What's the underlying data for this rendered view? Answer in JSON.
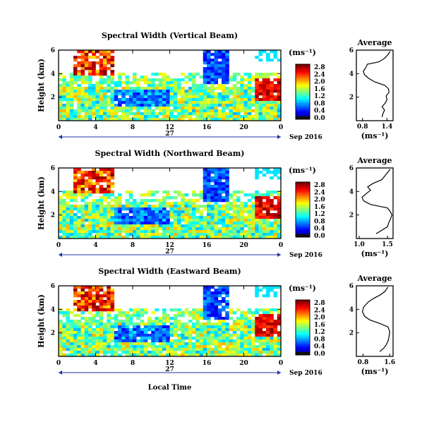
{
  "chart_data": [
    {
      "type": "heatmap",
      "title": "Spectral Width (Vertical Beam)",
      "ylabel": "Height (km)",
      "xlabel": "",
      "x_ticks": [
        "0",
        "4",
        "8",
        "12",
        "16",
        "20",
        "0"
      ],
      "x_ticks_hours": [
        0,
        4,
        8,
        12,
        16,
        20,
        24
      ],
      "y_ticks": [
        "2",
        "4",
        "6"
      ],
      "y_ticks_km": [
        2,
        4,
        6
      ],
      "xlim_hours": [
        0,
        24
      ],
      "ylim_km": [
        0,
        6
      ],
      "day_label": "27",
      "date_label": "Sep 2016",
      "colorbar": {
        "unit": "(ms⁻¹)",
        "ticks": [
          "0.0",
          "0.4",
          "0.8",
          "1.2",
          "1.6",
          "2.0",
          "2.4",
          "2.8"
        ],
        "range": [
          0,
          3
        ]
      },
      "profile": {
        "title": "Average",
        "xlabel": "(ms⁻¹)",
        "x_ticks": [
          "0.8",
          "1.4"
        ],
        "x_tick_values": [
          0.8,
          1.4
        ],
        "xlim": [
          0.65,
          1.55
        ],
        "y_ticks": [
          "2",
          "4",
          "6"
        ],
        "ylim_km": [
          0,
          6
        ],
        "points": [
          [
            1.28,
            0.3
          ],
          [
            1.3,
            0.6
          ],
          [
            1.34,
            0.9
          ],
          [
            1.28,
            1.2
          ],
          [
            1.36,
            1.5
          ],
          [
            1.4,
            1.8
          ],
          [
            1.38,
            2.1
          ],
          [
            1.45,
            2.4
          ],
          [
            1.44,
            2.7
          ],
          [
            1.35,
            3.0
          ],
          [
            1.1,
            3.3
          ],
          [
            0.95,
            3.6
          ],
          [
            0.85,
            3.9
          ],
          [
            0.82,
            4.2
          ],
          [
            0.88,
            4.5
          ],
          [
            0.92,
            4.8
          ],
          [
            1.2,
            5.0
          ],
          [
            1.34,
            5.3
          ],
          [
            1.42,
            5.6
          ],
          [
            1.48,
            5.9
          ]
        ]
      }
    },
    {
      "type": "heatmap",
      "title": "Spectral Width (Northward Beam)",
      "ylabel": "Height (km)",
      "xlabel": "",
      "x_ticks": [
        "0",
        "4",
        "8",
        "12",
        "16",
        "20",
        "0"
      ],
      "x_ticks_hours": [
        0,
        4,
        8,
        12,
        16,
        20,
        24
      ],
      "y_ticks": [
        "2",
        "4",
        "6"
      ],
      "y_ticks_km": [
        2,
        4,
        6
      ],
      "xlim_hours": [
        0,
        24
      ],
      "ylim_km": [
        0,
        6
      ],
      "day_label": "27",
      "date_label": "Sep 2016",
      "colorbar": {
        "unit": "(ms⁻¹)",
        "ticks": [
          "0.0",
          "0.4",
          "0.8",
          "1.2",
          "1.6",
          "2.0",
          "2.4",
          "2.8"
        ],
        "range": [
          0,
          3
        ]
      },
      "profile": {
        "title": "Average",
        "xlabel": "(ms⁻¹)",
        "x_ticks": [
          "1.0",
          "1.5"
        ],
        "x_tick_values": [
          1.0,
          1.5
        ],
        "xlim": [
          0.95,
          1.6
        ],
        "y_ticks": [
          "2",
          "4",
          "6"
        ],
        "ylim_km": [
          0,
          6
        ],
        "points": [
          [
            1.3,
            0.4
          ],
          [
            1.4,
            0.7
          ],
          [
            1.5,
            1.0
          ],
          [
            1.52,
            1.3
          ],
          [
            1.55,
            1.6
          ],
          [
            1.58,
            2.0
          ],
          [
            1.55,
            2.3
          ],
          [
            1.5,
            2.6
          ],
          [
            1.2,
            2.9
          ],
          [
            1.08,
            3.2
          ],
          [
            1.05,
            3.5
          ],
          [
            1.12,
            3.8
          ],
          [
            1.2,
            4.1
          ],
          [
            1.15,
            4.4
          ],
          [
            1.25,
            4.7
          ],
          [
            1.4,
            5.0
          ],
          [
            1.45,
            5.3
          ],
          [
            1.5,
            5.6
          ],
          [
            1.55,
            5.9
          ]
        ]
      }
    },
    {
      "type": "heatmap",
      "title": "Spectral Width (Eastward Beam)",
      "ylabel": "Height (km)",
      "xlabel": "Local Time",
      "x_ticks": [
        "0",
        "4",
        "8",
        "12",
        "16",
        "20",
        "0"
      ],
      "x_ticks_hours": [
        0,
        4,
        8,
        12,
        16,
        20,
        24
      ],
      "y_ticks": [
        "2",
        "4",
        "6"
      ],
      "y_ticks_km": [
        2,
        4,
        6
      ],
      "xlim_hours": [
        0,
        24
      ],
      "ylim_km": [
        0,
        6
      ],
      "day_label": "27",
      "date_label": "Sep 2016",
      "colorbar": {
        "unit": "(ms⁻¹)",
        "ticks": [
          "0.0",
          "0.4",
          "0.8",
          "1.2",
          "1.6",
          "2.0",
          "2.4",
          "2.8"
        ],
        "range": [
          0,
          3
        ]
      },
      "profile": {
        "title": "Average",
        "xlabel": "(ms⁻¹)",
        "x_ticks": [
          "0.8",
          "1.6"
        ],
        "x_tick_values": [
          0.8,
          1.6
        ],
        "xlim": [
          0.6,
          1.7
        ],
        "y_ticks": [
          "2",
          "4",
          "6"
        ],
        "ylim_km": [
          0,
          6
        ],
        "points": [
          [
            1.3,
            0.4
          ],
          [
            1.42,
            0.7
          ],
          [
            1.5,
            1.0
          ],
          [
            1.55,
            1.3
          ],
          [
            1.58,
            1.7
          ],
          [
            1.6,
            2.1
          ],
          [
            1.55,
            2.5
          ],
          [
            1.3,
            2.8
          ],
          [
            1.0,
            3.1
          ],
          [
            0.85,
            3.4
          ],
          [
            0.78,
            3.8
          ],
          [
            0.82,
            4.2
          ],
          [
            0.95,
            4.6
          ],
          [
            1.1,
            4.9
          ],
          [
            1.3,
            5.2
          ],
          [
            1.45,
            5.5
          ],
          [
            1.55,
            5.9
          ]
        ]
      }
    }
  ]
}
